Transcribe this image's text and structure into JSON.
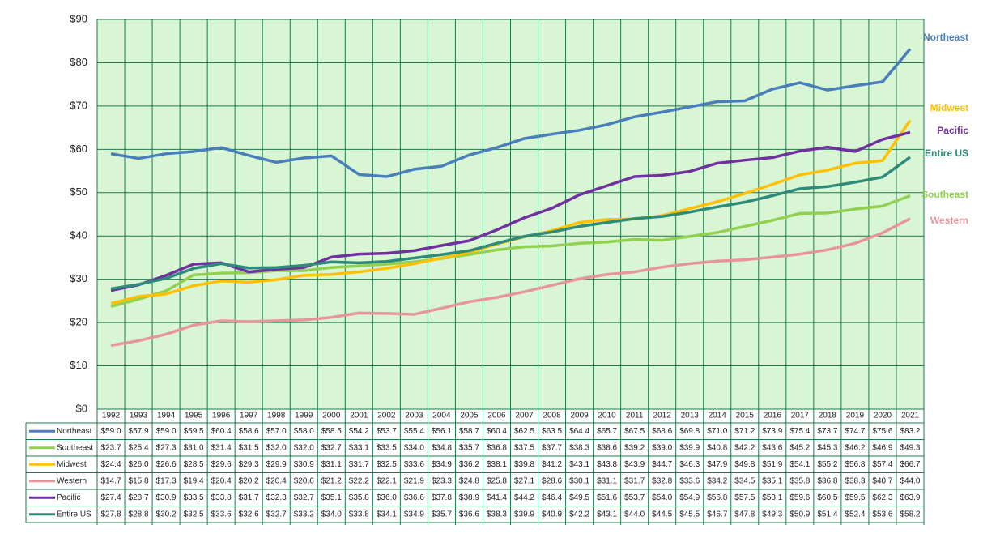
{
  "chart_data": {
    "type": "line",
    "categories": [
      "1992",
      "1993",
      "1994",
      "1995",
      "1996",
      "1997",
      "1998",
      "1999",
      "2000",
      "2001",
      "2002",
      "2003",
      "2004",
      "2005",
      "2006",
      "2007",
      "2008",
      "2009",
      "2010",
      "2011",
      "2012",
      "2013",
      "2014",
      "2015",
      "2016",
      "2017",
      "2018",
      "2019",
      "2020",
      "2021"
    ],
    "ylim": [
      0,
      90
    ],
    "yticks": [
      {
        "value": 0,
        "label": "$0"
      },
      {
        "value": 10,
        "label": "$10"
      },
      {
        "value": 20,
        "label": "$20"
      },
      {
        "value": 30,
        "label": "$30"
      },
      {
        "value": 40,
        "label": "$40"
      },
      {
        "value": 50,
        "label": "$50"
      },
      {
        "value": 60,
        "label": "$60"
      },
      {
        "value": 70,
        "label": "$70"
      },
      {
        "value": 80,
        "label": "$80"
      },
      {
        "value": 90,
        "label": "$90"
      }
    ],
    "grid": true,
    "series": [
      {
        "name": "Northeast",
        "color": "#4a7ebb",
        "values": [
          59.0,
          57.9,
          59.0,
          59.5,
          60.4,
          58.6,
          57.0,
          58.0,
          58.5,
          54.2,
          53.7,
          55.4,
          56.1,
          58.7,
          60.4,
          62.5,
          63.5,
          64.4,
          65.7,
          67.5,
          68.6,
          69.8,
          71.0,
          71.2,
          73.9,
          75.4,
          73.7,
          74.7,
          75.6,
          83.2
        ],
        "value_labels": [
          "$59.0",
          "$57.9",
          "$59.0",
          "$59.5",
          "$60.4",
          "$58.6",
          "$57.0",
          "$58.0",
          "$58.5",
          "$54.2",
          "$53.7",
          "$55.4",
          "$56.1",
          "$58.7",
          "$60.4",
          "$62.5",
          "$63.5",
          "$64.4",
          "$65.7",
          "$67.5",
          "$68.6",
          "$69.8",
          "$71.0",
          "$71.2",
          "$73.9",
          "$75.4",
          "$73.7",
          "$74.7",
          "$75.6",
          "$83.2"
        ]
      },
      {
        "name": "Southeast",
        "color": "#92d050",
        "values": [
          23.7,
          25.4,
          27.3,
          31.0,
          31.4,
          31.5,
          32.0,
          32.0,
          32.7,
          33.1,
          33.5,
          34.0,
          34.8,
          35.7,
          36.8,
          37.5,
          37.7,
          38.3,
          38.6,
          39.2,
          39.0,
          39.9,
          40.8,
          42.2,
          43.6,
          45.2,
          45.3,
          46.2,
          46.9,
          49.3
        ],
        "value_labels": [
          "$23.7",
          "$25.4",
          "$27.3",
          "$31.0",
          "$31.4",
          "$31.5",
          "$32.0",
          "$32.0",
          "$32.7",
          "$33.1",
          "$33.5",
          "$34.0",
          "$34.8",
          "$35.7",
          "$36.8",
          "$37.5",
          "$37.7",
          "$38.3",
          "$38.6",
          "$39.2",
          "$39.0",
          "$39.9",
          "$40.8",
          "$42.2",
          "$43.6",
          "$45.2",
          "$45.3",
          "$46.2",
          "$46.9",
          "$49.3"
        ]
      },
      {
        "name": "Midwest",
        "color": "#ffc000",
        "values": [
          24.4,
          26.0,
          26.6,
          28.5,
          29.6,
          29.3,
          29.9,
          30.9,
          31.1,
          31.7,
          32.5,
          33.6,
          34.9,
          36.2,
          38.1,
          39.8,
          41.2,
          43.1,
          43.8,
          43.9,
          44.7,
          46.3,
          47.9,
          49.8,
          51.9,
          54.1,
          55.2,
          56.8,
          57.4,
          66.7
        ],
        "value_labels": [
          "$24.4",
          "$26.0",
          "$26.6",
          "$28.5",
          "$29.6",
          "$29.3",
          "$29.9",
          "$30.9",
          "$31.1",
          "$31.7",
          "$32.5",
          "$33.6",
          "$34.9",
          "$36.2",
          "$38.1",
          "$39.8",
          "$41.2",
          "$43.1",
          "$43.8",
          "$43.9",
          "$44.7",
          "$46.3",
          "$47.9",
          "$49.8",
          "$51.9",
          "$54.1",
          "$55.2",
          "$56.8",
          "$57.4",
          "$66.7"
        ]
      },
      {
        "name": "Western",
        "color": "#e6959a",
        "values": [
          14.7,
          15.8,
          17.3,
          19.4,
          20.4,
          20.2,
          20.4,
          20.6,
          21.2,
          22.2,
          22.1,
          21.9,
          23.3,
          24.8,
          25.8,
          27.1,
          28.6,
          30.1,
          31.1,
          31.7,
          32.8,
          33.6,
          34.2,
          34.5,
          35.1,
          35.8,
          36.8,
          38.3,
          40.7,
          44.0
        ],
        "value_labels": [
          "$14.7",
          "$15.8",
          "$17.3",
          "$19.4",
          "$20.4",
          "$20.2",
          "$20.4",
          "$20.6",
          "$21.2",
          "$22.2",
          "$22.1",
          "$21.9",
          "$23.3",
          "$24.8",
          "$25.8",
          "$27.1",
          "$28.6",
          "$30.1",
          "$31.1",
          "$31.7",
          "$32.8",
          "$33.6",
          "$34.2",
          "$34.5",
          "$35.1",
          "$35.8",
          "$36.8",
          "$38.3",
          "$40.7",
          "$44.0"
        ]
      },
      {
        "name": "Pacific",
        "color": "#7030a0",
        "values": [
          27.4,
          28.7,
          30.9,
          33.5,
          33.8,
          31.7,
          32.3,
          32.7,
          35.1,
          35.8,
          36.0,
          36.6,
          37.8,
          38.9,
          41.4,
          44.2,
          46.4,
          49.5,
          51.6,
          53.7,
          54.0,
          54.9,
          56.8,
          57.5,
          58.1,
          59.6,
          60.5,
          59.5,
          62.3,
          63.9
        ],
        "value_labels": [
          "$27.4",
          "$28.7",
          "$30.9",
          "$33.5",
          "$33.8",
          "$31.7",
          "$32.3",
          "$32.7",
          "$35.1",
          "$35.8",
          "$36.0",
          "$36.6",
          "$37.8",
          "$38.9",
          "$41.4",
          "$44.2",
          "$46.4",
          "$49.5",
          "$51.6",
          "$53.7",
          "$54.0",
          "$54.9",
          "$56.8",
          "$57.5",
          "$58.1",
          "$59.6",
          "$60.5",
          "$59.5",
          "$62.3",
          "$63.9"
        ]
      },
      {
        "name": "Entire US",
        "color": "#2e8b7a",
        "values": [
          27.8,
          28.8,
          30.2,
          32.5,
          33.6,
          32.6,
          32.7,
          33.2,
          34.0,
          33.8,
          34.1,
          34.9,
          35.7,
          36.6,
          38.3,
          39.9,
          40.9,
          42.2,
          43.1,
          44.0,
          44.5,
          45.5,
          46.7,
          47.8,
          49.3,
          50.9,
          51.4,
          52.4,
          53.6,
          58.2
        ],
        "value_labels": [
          "$27.8",
          "$28.8",
          "$30.2",
          "$32.5",
          "$33.6",
          "$32.6",
          "$32.7",
          "$33.2",
          "$34.0",
          "$33.8",
          "$34.1",
          "$34.9",
          "$35.7",
          "$36.6",
          "$38.3",
          "$39.9",
          "$40.9",
          "$42.2",
          "$43.1",
          "$44.0",
          "$44.5",
          "$45.5",
          "$46.7",
          "$47.8",
          "$49.3",
          "$50.9",
          "$51.4",
          "$52.4",
          "$53.6",
          "$58.2"
        ]
      }
    ]
  }
}
